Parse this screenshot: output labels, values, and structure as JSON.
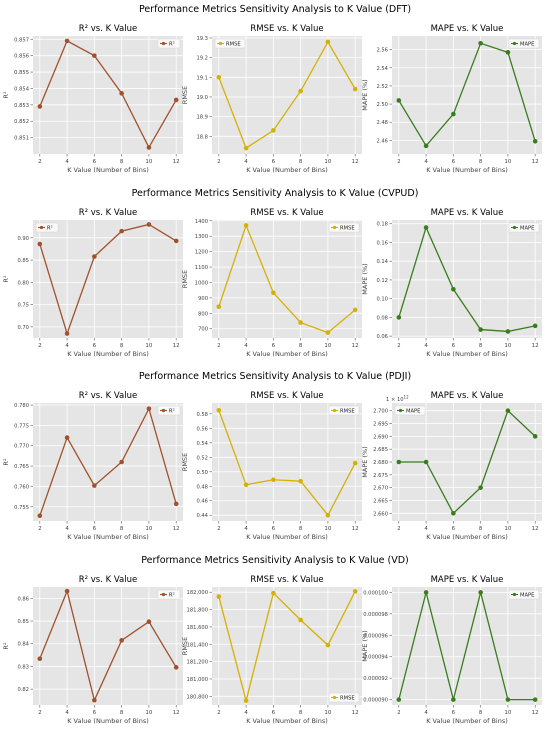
{
  "colors": {
    "r2": "#a0522d",
    "rmse": "#d4b106",
    "mape": "#3a7d1e",
    "panel_bg": "#e5e5e5",
    "grid": "#ffffff"
  },
  "common": {
    "xlabel": "K Value (Number of Bins)",
    "x_ticks": [
      2,
      4,
      6,
      8,
      10,
      12
    ]
  },
  "chart_data": [
    {
      "title": "Performance Metrics Sensitivity Analysis to K Value (DFT)",
      "panels": [
        {
          "type": "line",
          "metric": "r2",
          "title": "R² vs. K Value",
          "ylabel": "R²",
          "legend": "R²",
          "legend_loc": "upper-right",
          "x": [
            2,
            4,
            6,
            8,
            10,
            12
          ],
          "y": [
            0.8529,
            0.8569,
            0.856,
            0.8537,
            0.8504,
            0.8533
          ],
          "ylim": [
            0.85,
            0.8572
          ],
          "yticks": [
            0.851,
            0.852,
            0.853,
            0.854,
            0.855,
            0.856,
            0.857
          ],
          "ytick_labels": [
            "0.851",
            "0.852",
            "0.853",
            "0.854",
            "0.855",
            "0.856",
            "0.857"
          ]
        },
        {
          "type": "line",
          "metric": "rmse",
          "title": "RMSE vs. K Value",
          "ylabel": "RMSE",
          "legend": "RMSE",
          "legend_loc": "upper-left",
          "x": [
            2,
            4,
            6,
            8,
            10,
            12
          ],
          "y": [
            19.1,
            18.74,
            18.83,
            19.03,
            19.28,
            19.04
          ],
          "ylim": [
            18.71,
            19.31
          ],
          "yticks": [
            18.8,
            18.9,
            19.0,
            19.1,
            19.2,
            19.3
          ],
          "ytick_labels": [
            "18.8",
            "18.9",
            "19.0",
            "19.1",
            "19.2",
            "19.3"
          ]
        },
        {
          "type": "line",
          "metric": "mape",
          "title": "MAPE vs. K Value",
          "ylabel": "MAPE (%)",
          "legend": "MAPE",
          "legend_loc": "upper-right",
          "x": [
            2,
            4,
            6,
            8,
            10,
            12
          ],
          "y": [
            2.504,
            2.454,
            2.489,
            2.567,
            2.557,
            2.459
          ],
          "ylim": [
            2.445,
            2.575
          ],
          "yticks": [
            2.46,
            2.48,
            2.5,
            2.52,
            2.54,
            2.56
          ],
          "ytick_labels": [
            "2.46",
            "2.48",
            "2.50",
            "2.52",
            "2.54",
            "2.56"
          ]
        }
      ]
    },
    {
      "title": "Performance Metrics Sensitivity Analysis to K Value (CVPUD)",
      "panels": [
        {
          "type": "line",
          "metric": "r2",
          "title": "R² vs. K Value",
          "ylabel": "R²",
          "legend": "R²",
          "legend_loc": "upper-left",
          "x": [
            2,
            4,
            6,
            8,
            10,
            12
          ],
          "y": [
            0.886,
            0.685,
            0.858,
            0.915,
            0.93,
            0.893
          ],
          "ylim": [
            0.675,
            0.94
          ],
          "yticks": [
            0.7,
            0.75,
            0.8,
            0.85,
            0.9
          ],
          "ytick_labels": [
            "0.70",
            "0.75",
            "0.80",
            "0.85",
            "0.90"
          ]
        },
        {
          "type": "line",
          "metric": "rmse",
          "title": "RMSE vs. K Value",
          "ylabel": "RMSE",
          "legend": "RMSE",
          "legend_loc": "upper-right",
          "x": [
            2,
            4,
            6,
            8,
            10,
            12
          ],
          "y": [
            843,
            1370,
            933,
            740,
            675,
            822
          ],
          "ylim": [
            640,
            1405
          ],
          "yticks": [
            700,
            800,
            900,
            1000,
            1100,
            1200,
            1300,
            1400
          ],
          "ytick_labels": [
            "700",
            "800",
            "900",
            "1000",
            "1100",
            "1200",
            "1300",
            "1400"
          ]
        },
        {
          "type": "line",
          "metric": "mape",
          "title": "MAPE vs. K Value",
          "ylabel": "MAPE (%)",
          "legend": "MAPE",
          "legend_loc": "upper-right",
          "x": [
            2,
            4,
            6,
            8,
            10,
            12
          ],
          "y": [
            0.08,
            0.176,
            0.11,
            0.067,
            0.065,
            0.071
          ],
          "ylim": [
            0.058,
            0.184
          ],
          "yticks": [
            0.06,
            0.08,
            0.1,
            0.12,
            0.14,
            0.16,
            0.18
          ],
          "ytick_labels": [
            "0.06",
            "0.08",
            "0.10",
            "0.12",
            "0.14",
            "0.16",
            "0.18"
          ]
        }
      ]
    },
    {
      "title": "Performance Metrics Sensitivity Analysis to K Value (PDJI)",
      "panels": [
        {
          "type": "line",
          "metric": "r2",
          "title": "R² vs. K Value",
          "ylabel": "R²",
          "legend": "R²",
          "legend_loc": "upper-right",
          "x": [
            2,
            4,
            6,
            8,
            10,
            12
          ],
          "y": [
            0.7528,
            0.772,
            0.7602,
            0.766,
            0.7791,
            0.7557
          ],
          "ylim": [
            0.7515,
            0.7805
          ],
          "yticks": [
            0.755,
            0.76,
            0.765,
            0.77,
            0.775,
            0.78
          ],
          "ytick_labels": [
            "0.755",
            "0.760",
            "0.765",
            "0.770",
            "0.775",
            "0.780"
          ]
        },
        {
          "type": "line",
          "metric": "rmse",
          "title": "RMSE vs. K Value",
          "ylabel": "RMSE",
          "legend": "RMSE",
          "legend_loc": "upper-right",
          "x": [
            2,
            4,
            6,
            8,
            10,
            12
          ],
          "y": [
            0.585,
            0.482,
            0.489,
            0.487,
            0.44,
            0.512
          ],
          "ylim": [
            0.432,
            0.595
          ],
          "yticks": [
            0.44,
            0.46,
            0.48,
            0.5,
            0.52,
            0.54,
            0.56,
            0.58
          ],
          "ytick_labels": [
            "0.44",
            "0.46",
            "0.48",
            "0.50",
            "0.52",
            "0.54",
            "0.56",
            "0.58"
          ]
        },
        {
          "type": "line",
          "metric": "mape",
          "title": "MAPE vs. K Value",
          "ylabel": "MAPE (%)",
          "legend": "MAPE",
          "legend_loc": "upper-left",
          "axis_multiplier": "1e12",
          "x": [
            2,
            4,
            6,
            8,
            10,
            12
          ],
          "y": [
            2.68,
            2.68,
            2.66,
            2.67,
            2.7,
            2.69
          ],
          "ylim": [
            2.657,
            2.703
          ],
          "yticks": [
            2.66,
            2.665,
            2.67,
            2.675,
            2.68,
            2.685,
            2.69,
            2.695,
            2.7
          ],
          "ytick_labels": [
            "2.660",
            "2.665",
            "2.670",
            "2.675",
            "2.680",
            "2.685",
            "2.690",
            "2.695",
            "2.700"
          ]
        }
      ]
    },
    {
      "title": "Performance Metrics Sensitivity Analysis to K Value (VD)",
      "panels": [
        {
          "type": "line",
          "metric": "r2",
          "title": "R² vs. K Value",
          "ylabel": "R²",
          "legend": "R²",
          "legend_loc": "upper-right",
          "x": [
            2,
            4,
            6,
            8,
            10,
            12
          ],
          "y": [
            0.8334,
            0.8632,
            0.8151,
            0.8415,
            0.8497,
            0.8296
          ],
          "ylim": [
            0.813,
            0.865
          ],
          "yticks": [
            0.82,
            0.83,
            0.84,
            0.85,
            0.86
          ],
          "ytick_labels": [
            "0.82",
            "0.83",
            "0.84",
            "0.85",
            "0.86"
          ]
        },
        {
          "type": "line",
          "metric": "rmse",
          "title": "RMSE vs. K Value",
          "ylabel": "RMSE",
          "legend": "RMSE",
          "legend_loc": "lower-right",
          "x": [
            2,
            4,
            6,
            8,
            10,
            12
          ],
          "y": [
            181950,
            180750,
            181990,
            181680,
            181390,
            182010
          ],
          "ylim": [
            180700,
            182060
          ],
          "yticks": [
            180800,
            181000,
            181200,
            181400,
            181600,
            181800,
            182000
          ],
          "ytick_labels": [
            "180,800",
            "181,000",
            "181,200",
            "181,400",
            "181,600",
            "181,800",
            "182,000"
          ]
        },
        {
          "type": "line",
          "metric": "mape",
          "title": "MAPE vs. K Value",
          "ylabel": "MAPE (%)",
          "legend": "MAPE",
          "legend_loc": "upper-right",
          "x": [
            2,
            4,
            6,
            8,
            10,
            12
          ],
          "y": [
            9e-05,
            0.0001,
            9e-05,
            0.0001,
            9e-05,
            9e-05
          ],
          "ylim": [
            8.95e-05,
            0.0001005
          ],
          "yticks": [
            9e-05,
            9.2e-05,
            9.4e-05,
            9.6e-05,
            9.8e-05,
            0.0001
          ],
          "ytick_labels": [
            "0.000090",
            "0.000092",
            "0.000094",
            "0.000096",
            "0.000098",
            "0.000100"
          ]
        }
      ]
    }
  ]
}
